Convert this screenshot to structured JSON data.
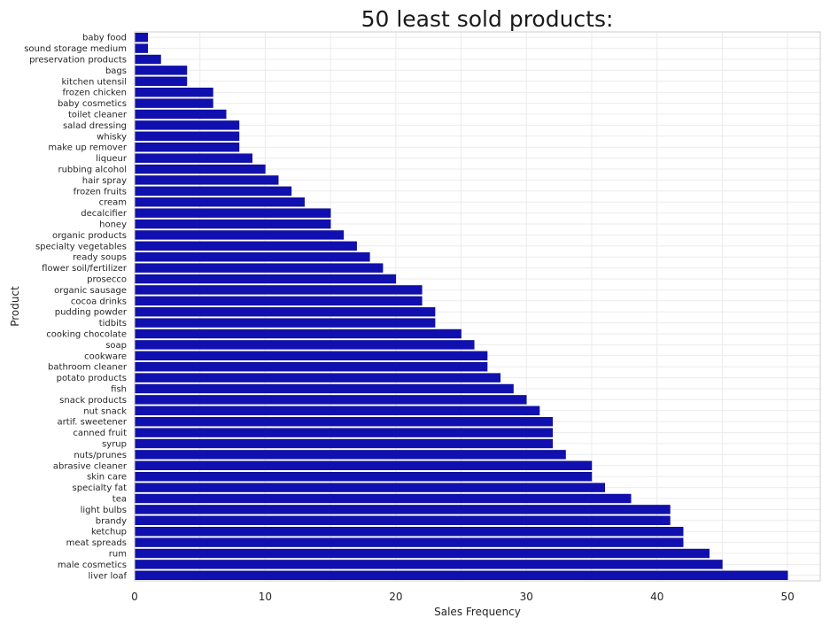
{
  "chart_data": {
    "type": "bar",
    "orientation": "horizontal",
    "title": "50 least sold products:",
    "xlabel": "Sales Frequency",
    "ylabel": "Product",
    "xlim": [
      0,
      52.5
    ],
    "xticks": [
      0,
      10,
      20,
      30,
      40,
      50
    ],
    "grid": true,
    "bar_color": "#1010b0",
    "categories": [
      "baby food",
      "sound storage medium",
      "preservation products",
      "bags",
      "kitchen utensil",
      "frozen chicken",
      "baby cosmetics",
      "toilet cleaner",
      "salad dressing",
      "whisky",
      "make up remover",
      "liqueur",
      "rubbing alcohol",
      "hair spray",
      "frozen fruits",
      "cream",
      "decalcifier",
      "honey",
      "organic products",
      "specialty vegetables",
      "ready soups",
      "flower soil/fertilizer",
      "prosecco",
      "organic sausage",
      "cocoa drinks",
      "pudding powder",
      "tidbits",
      "cooking chocolate",
      "soap",
      "cookware",
      "bathroom cleaner",
      "potato products",
      "fish",
      "snack products",
      "nut snack",
      "artif. sweetener",
      "canned fruit",
      "syrup",
      "nuts/prunes",
      "abrasive cleaner",
      "skin care",
      "specialty fat",
      "tea",
      "light bulbs",
      "brandy",
      "ketchup",
      "meat spreads",
      "rum",
      "male cosmetics",
      "liver loaf"
    ],
    "values": [
      1,
      1,
      2,
      4,
      4,
      6,
      6,
      7,
      8,
      8,
      8,
      9,
      10,
      11,
      12,
      13,
      15,
      15,
      16,
      17,
      18,
      19,
      20,
      22,
      22,
      23,
      23,
      25,
      26,
      27,
      27,
      28,
      29,
      30,
      31,
      32,
      32,
      32,
      33,
      35,
      35,
      36,
      38,
      41,
      41,
      42,
      42,
      44,
      45,
      50
    ]
  }
}
